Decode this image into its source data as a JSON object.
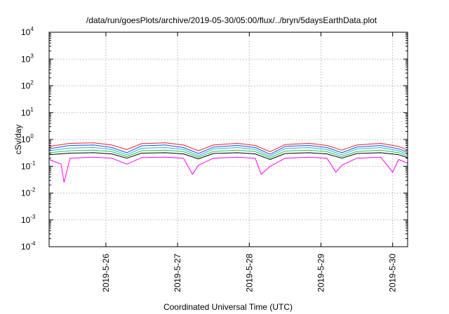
{
  "chart_data": {
    "type": "line",
    "title": "/data/run/goesPlots/archive/2019-05-30/05:00/flux/../bryn/5daysEarthData.plot",
    "xlabel": "Coordinated Universal Time (UTC)",
    "ylabel": "cSv/day",
    "yscale": "log",
    "ylim": [
      0.0001,
      10000
    ],
    "y_ticks": [
      {
        "base": "10",
        "exp": "-4",
        "value": 0.0001
      },
      {
        "base": "10",
        "exp": "-3",
        "value": 0.001
      },
      {
        "base": "10",
        "exp": "-2",
        "value": 0.01
      },
      {
        "base": "10",
        "exp": "-1",
        "value": 0.1
      },
      {
        "base": "10",
        "exp": "0",
        "value": 1
      },
      {
        "base": "10",
        "exp": "1",
        "value": 10
      },
      {
        "base": "10",
        "exp": "2",
        "value": 100
      },
      {
        "base": "10",
        "exp": "3",
        "value": 1000
      },
      {
        "base": "10",
        "exp": "4",
        "value": 10000
      }
    ],
    "xlim": [
      "2019-05-25T05:00",
      "2019-05-30T05:00"
    ],
    "x_ticks": [
      "2019-5-26",
      "2019-5-27",
      "2019-5-28",
      "2019-5-29",
      "2019-5-30"
    ],
    "grid": true,
    "legend": "none",
    "series": [
      {
        "color": "#e8202a",
        "x": [
          "2019-05-25T05:00",
          "2019-05-25T12:00",
          "2019-05-25T20:00",
          "2019-05-26T02:00",
          "2019-05-26T07:00",
          "2019-05-26T12:00",
          "2019-05-26T20:00",
          "2019-05-27T02:00",
          "2019-05-27T07:00",
          "2019-05-27T12:00",
          "2019-05-27T20:00",
          "2019-05-28T02:00",
          "2019-05-28T07:00",
          "2019-05-28T12:00",
          "2019-05-28T20:00",
          "2019-05-29T02:00",
          "2019-05-29T07:00",
          "2019-05-29T12:00",
          "2019-05-29T20:00",
          "2019-05-30T02:00",
          "2019-05-30T05:00"
        ],
        "y": [
          0.55,
          0.72,
          0.75,
          0.62,
          0.42,
          0.7,
          0.75,
          0.62,
          0.38,
          0.62,
          0.72,
          0.6,
          0.35,
          0.65,
          0.72,
          0.6,
          0.4,
          0.62,
          0.72,
          0.55,
          0.4
        ]
      },
      {
        "color": "#1c4fd8",
        "x": [
          "2019-05-25T05:00",
          "2019-05-25T12:00",
          "2019-05-25T20:00",
          "2019-05-26T02:00",
          "2019-05-26T07:00",
          "2019-05-26T12:00",
          "2019-05-26T20:00",
          "2019-05-27T02:00",
          "2019-05-27T07:00",
          "2019-05-27T12:00",
          "2019-05-27T20:00",
          "2019-05-28T02:00",
          "2019-05-28T07:00",
          "2019-05-28T12:00",
          "2019-05-28T20:00",
          "2019-05-29T02:00",
          "2019-05-29T07:00",
          "2019-05-29T12:00",
          "2019-05-29T20:00",
          "2019-05-30T02:00",
          "2019-05-30T05:00"
        ],
        "y": [
          0.45,
          0.6,
          0.62,
          0.5,
          0.32,
          0.58,
          0.62,
          0.5,
          0.3,
          0.52,
          0.6,
          0.5,
          0.28,
          0.55,
          0.6,
          0.5,
          0.32,
          0.52,
          0.6,
          0.45,
          0.33
        ]
      },
      {
        "color": "#22b8d8",
        "x": [
          "2019-05-25T05:00",
          "2019-05-25T12:00",
          "2019-05-25T20:00",
          "2019-05-26T02:00",
          "2019-05-26T07:00",
          "2019-05-26T12:00",
          "2019-05-26T20:00",
          "2019-05-27T02:00",
          "2019-05-27T07:00",
          "2019-05-27T12:00",
          "2019-05-27T20:00",
          "2019-05-28T02:00",
          "2019-05-28T07:00",
          "2019-05-28T12:00",
          "2019-05-28T20:00",
          "2019-05-29T02:00",
          "2019-05-29T07:00",
          "2019-05-29T12:00",
          "2019-05-29T20:00",
          "2019-05-30T02:00",
          "2019-05-30T05:00"
        ],
        "y": [
          0.38,
          0.48,
          0.5,
          0.42,
          0.27,
          0.47,
          0.5,
          0.42,
          0.25,
          0.44,
          0.5,
          0.42,
          0.24,
          0.46,
          0.5,
          0.42,
          0.27,
          0.44,
          0.5,
          0.38,
          0.28
        ]
      },
      {
        "color": "#22c24a",
        "x": [
          "2019-05-25T05:00",
          "2019-05-25T12:00",
          "2019-05-25T20:00",
          "2019-05-26T02:00",
          "2019-05-26T07:00",
          "2019-05-26T12:00",
          "2019-05-26T20:00",
          "2019-05-27T02:00",
          "2019-05-27T07:00",
          "2019-05-27T12:00",
          "2019-05-27T20:00",
          "2019-05-28T02:00",
          "2019-05-28T07:00",
          "2019-05-28T12:00",
          "2019-05-28T20:00",
          "2019-05-29T02:00",
          "2019-05-29T07:00",
          "2019-05-29T12:00",
          "2019-05-29T20:00",
          "2019-05-30T02:00",
          "2019-05-30T05:00"
        ],
        "y": [
          0.32,
          0.38,
          0.4,
          0.35,
          0.23,
          0.38,
          0.4,
          0.35,
          0.22,
          0.36,
          0.4,
          0.35,
          0.21,
          0.37,
          0.4,
          0.35,
          0.23,
          0.36,
          0.4,
          0.32,
          0.24
        ]
      },
      {
        "color": "#000000",
        "x": [
          "2019-05-25T05:00",
          "2019-05-25T12:00",
          "2019-05-25T20:00",
          "2019-05-26T02:00",
          "2019-05-26T07:00",
          "2019-05-26T12:00",
          "2019-05-26T20:00",
          "2019-05-27T02:00",
          "2019-05-27T07:00",
          "2019-05-27T12:00",
          "2019-05-27T20:00",
          "2019-05-28T02:00",
          "2019-05-28T07:00",
          "2019-05-28T12:00",
          "2019-05-28T20:00",
          "2019-05-29T02:00",
          "2019-05-29T07:00",
          "2019-05-29T12:00",
          "2019-05-29T20:00",
          "2019-05-30T02:00",
          "2019-05-30T05:00"
        ],
        "y": [
          0.27,
          0.31,
          0.32,
          0.29,
          0.2,
          0.31,
          0.32,
          0.29,
          0.19,
          0.3,
          0.32,
          0.29,
          0.18,
          0.3,
          0.32,
          0.29,
          0.2,
          0.3,
          0.32,
          0.27,
          0.21
        ]
      },
      {
        "color": "#ff00ff",
        "x": [
          "2019-05-25T05:00",
          "2019-05-25T09:00",
          "2019-05-25T10:00",
          "2019-05-25T12:00",
          "2019-05-25T20:00",
          "2019-05-26T02:00",
          "2019-05-26T07:00",
          "2019-05-26T12:00",
          "2019-05-26T20:00",
          "2019-05-27T02:00",
          "2019-05-27T05:00",
          "2019-05-27T07:00",
          "2019-05-27T12:00",
          "2019-05-27T20:00",
          "2019-05-28T02:00",
          "2019-05-28T04:00",
          "2019-05-28T07:00",
          "2019-05-28T12:00",
          "2019-05-28T20:00",
          "2019-05-29T02:00",
          "2019-05-29T05:00",
          "2019-05-29T07:00",
          "2019-05-29T12:00",
          "2019-05-29T20:00",
          "2019-05-30T00:00",
          "2019-05-30T02:00",
          "2019-05-30T05:00"
        ],
        "y": [
          0.18,
          0.12,
          0.025,
          0.2,
          0.22,
          0.2,
          0.12,
          0.21,
          0.22,
          0.2,
          0.05,
          0.11,
          0.2,
          0.22,
          0.2,
          0.05,
          0.1,
          0.2,
          0.22,
          0.2,
          0.06,
          0.11,
          0.2,
          0.22,
          0.06,
          0.18,
          0.13
        ]
      }
    ]
  }
}
